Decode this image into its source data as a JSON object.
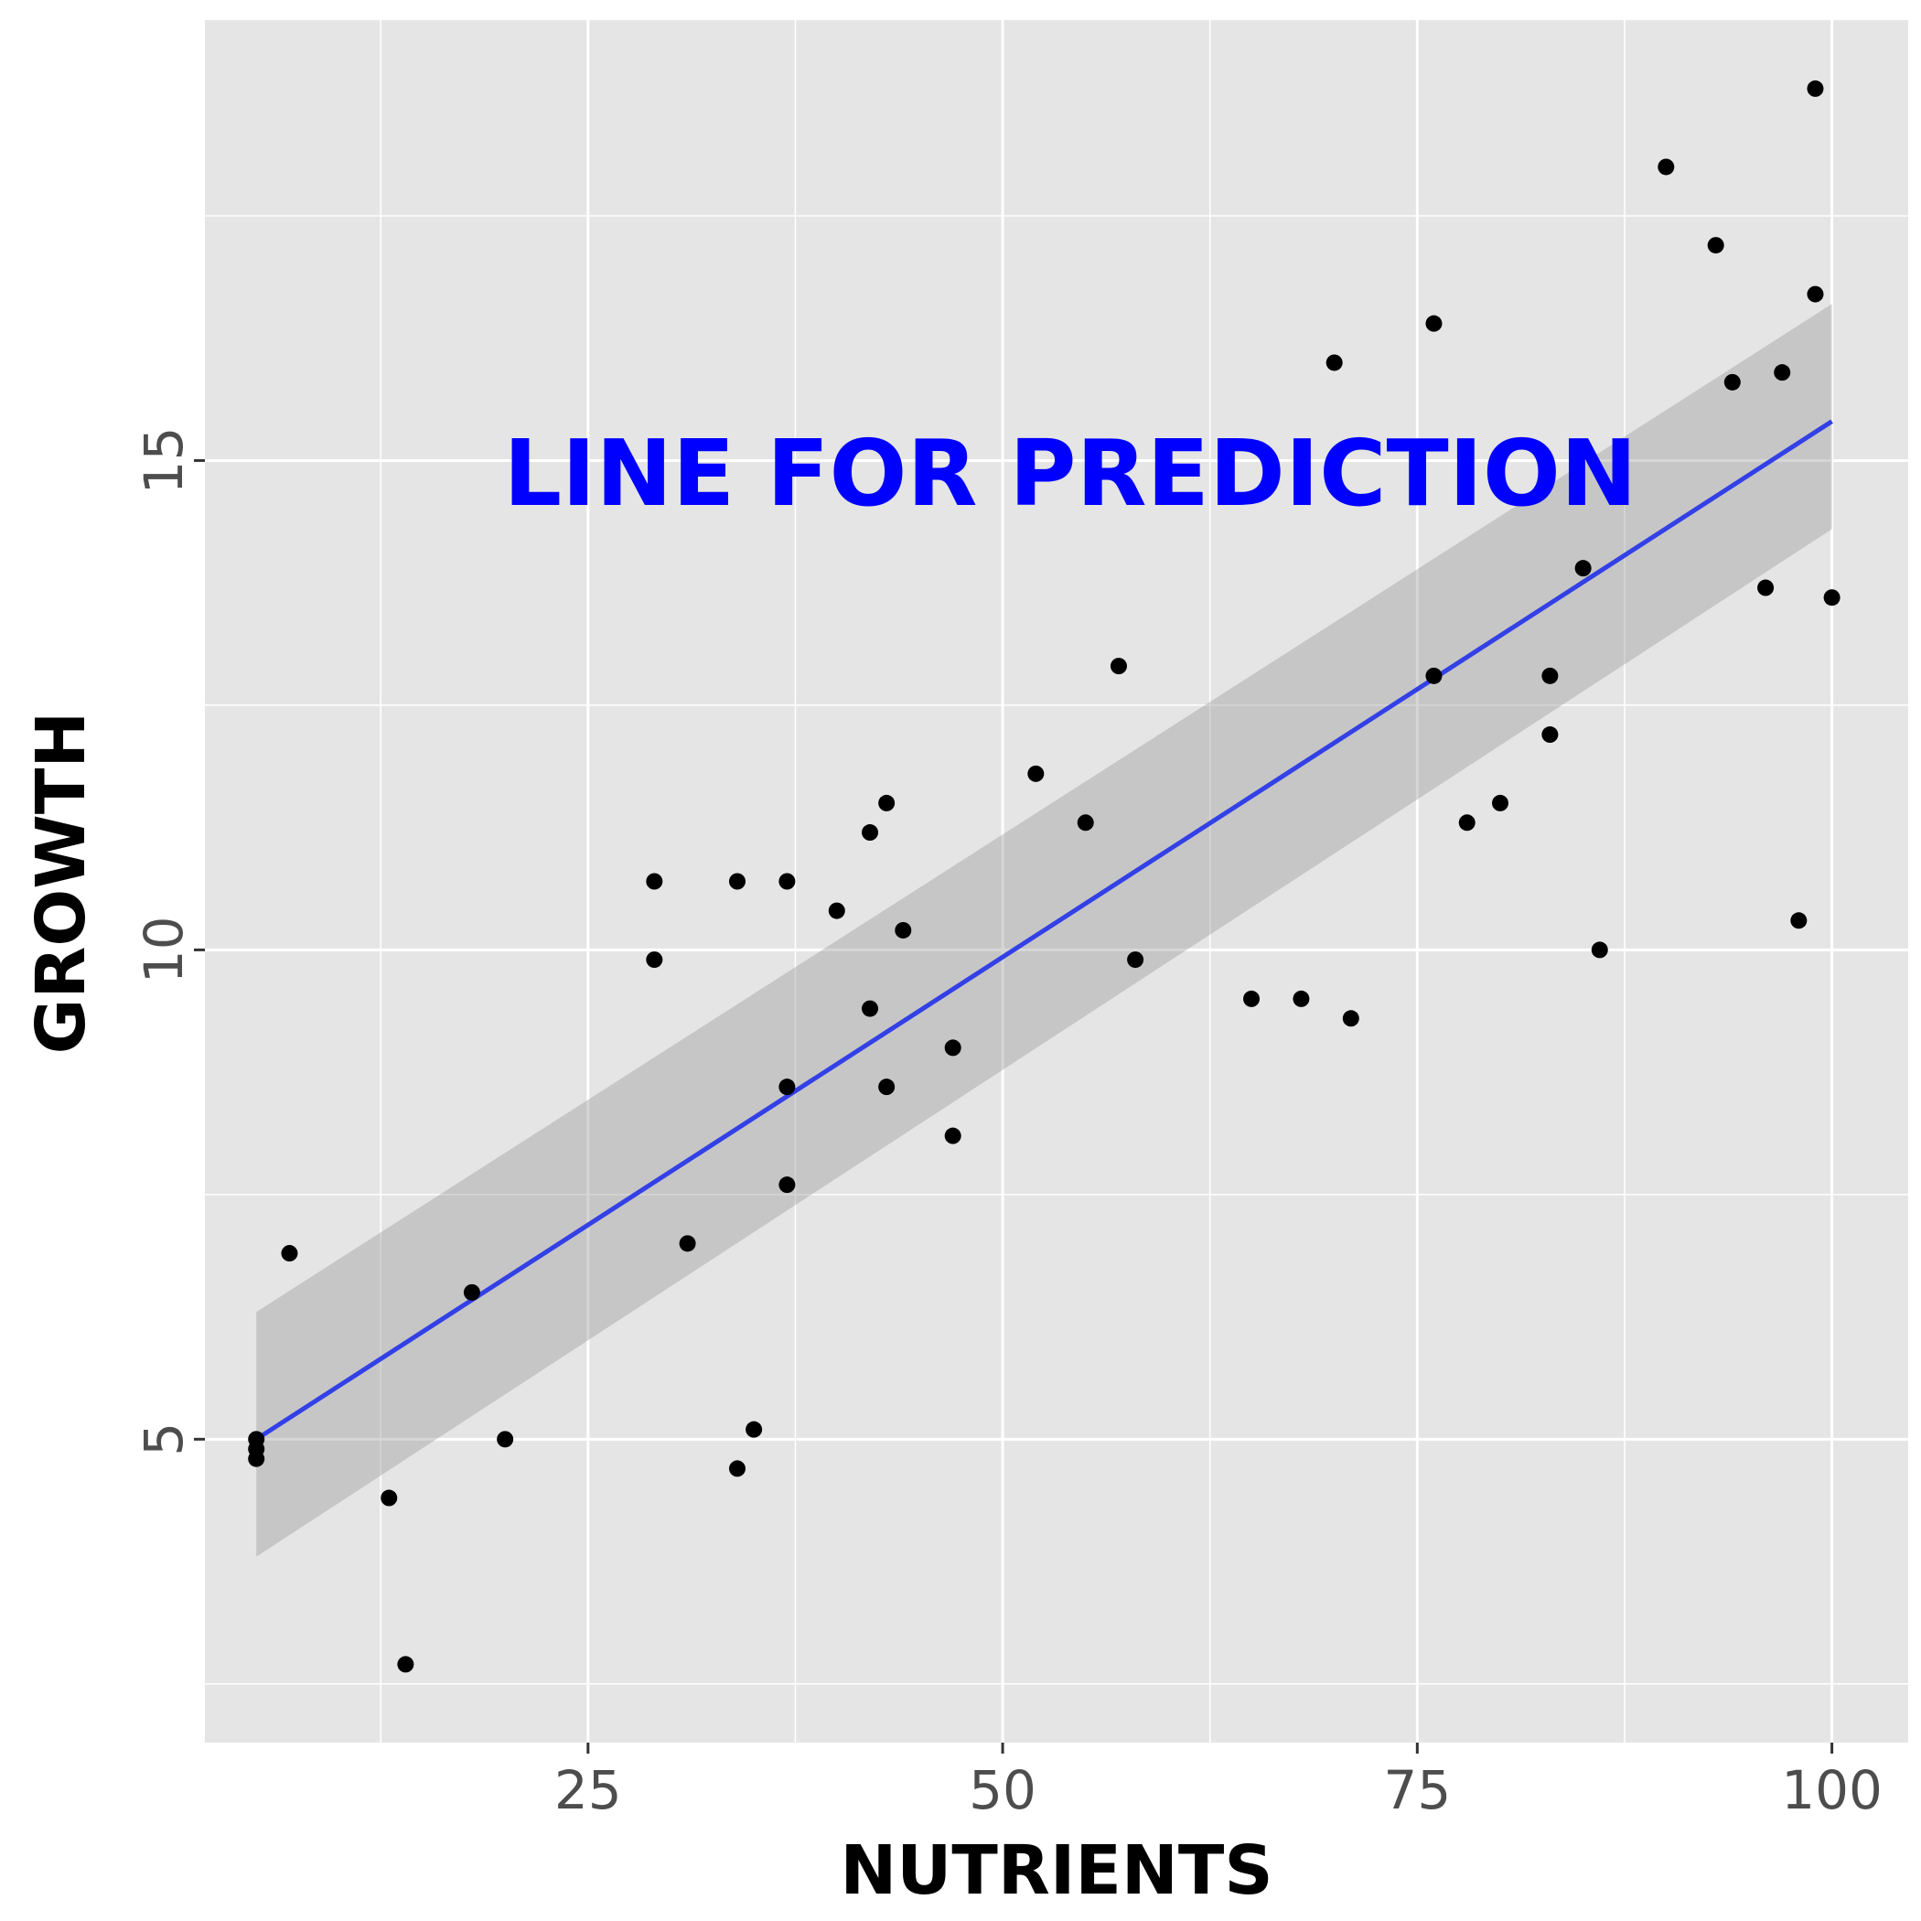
{
  "chart_data": {
    "type": "scatter",
    "xlabel": "NUTRIENTS",
    "ylabel": "GROWTH",
    "annotation": "LINE FOR PREDICTION",
    "xlim": [
      1.9,
      104.6
    ],
    "ylim": [
      1.9,
      19.5
    ],
    "x_major_ticks": [
      25,
      50,
      75,
      100
    ],
    "x_tick_labels": [
      "25",
      "50",
      "75",
      "100"
    ],
    "x_minor_ticks": [
      12.5,
      37.5,
      62.5,
      87.5
    ],
    "y_major_ticks": [
      5,
      10,
      15
    ],
    "y_tick_labels": [
      "5",
      "10",
      "15"
    ],
    "y_minor_ticks": [
      2.5,
      7.5,
      12.5,
      17.5
    ],
    "grid": true,
    "colors": {
      "panel_background": "#e5e5e5",
      "grid": "#ffffff",
      "points": "#000000",
      "regression_line": "#3340e6",
      "confidence_band": "#999999",
      "annotation": "#0000ff"
    },
    "points": [
      {
        "x": 5,
        "y": 5.0
      },
      {
        "x": 5,
        "y": 4.9
      },
      {
        "x": 5,
        "y": 4.8
      },
      {
        "x": 7,
        "y": 6.9
      },
      {
        "x": 13,
        "y": 4.4
      },
      {
        "x": 14,
        "y": 2.7
      },
      {
        "x": 18,
        "y": 6.5
      },
      {
        "x": 20,
        "y": 5.0
      },
      {
        "x": 29,
        "y": 10.7
      },
      {
        "x": 29,
        "y": 9.9
      },
      {
        "x": 31,
        "y": 7.0
      },
      {
        "x": 34,
        "y": 10.7
      },
      {
        "x": 34,
        "y": 4.7
      },
      {
        "x": 35,
        "y": 5.1
      },
      {
        "x": 37,
        "y": 10.7
      },
      {
        "x": 37,
        "y": 8.6
      },
      {
        "x": 37,
        "y": 7.6
      },
      {
        "x": 40,
        "y": 10.4
      },
      {
        "x": 42,
        "y": 11.2
      },
      {
        "x": 42,
        "y": 9.4
      },
      {
        "x": 43,
        "y": 11.5
      },
      {
        "x": 43,
        "y": 8.6
      },
      {
        "x": 44,
        "y": 10.2
      },
      {
        "x": 47,
        "y": 9.0
      },
      {
        "x": 47,
        "y": 8.1
      },
      {
        "x": 52,
        "y": 11.8
      },
      {
        "x": 55,
        "y": 11.3
      },
      {
        "x": 57,
        "y": 12.9
      },
      {
        "x": 58,
        "y": 9.9
      },
      {
        "x": 65,
        "y": 9.5
      },
      {
        "x": 68,
        "y": 9.5
      },
      {
        "x": 70,
        "y": 16.0
      },
      {
        "x": 71,
        "y": 9.3
      },
      {
        "x": 76,
        "y": 16.4
      },
      {
        "x": 76,
        "y": 12.8
      },
      {
        "x": 78,
        "y": 11.3
      },
      {
        "x": 80,
        "y": 11.5
      },
      {
        "x": 83,
        "y": 12.8
      },
      {
        "x": 83,
        "y": 12.2
      },
      {
        "x": 85,
        "y": 13.9
      },
      {
        "x": 86,
        "y": 10.0
      },
      {
        "x": 90,
        "y": 18.0
      },
      {
        "x": 93,
        "y": 17.2
      },
      {
        "x": 94,
        "y": 15.8
      },
      {
        "x": 96,
        "y": 13.7
      },
      {
        "x": 97,
        "y": 15.9
      },
      {
        "x": 98,
        "y": 10.3
      },
      {
        "x": 99,
        "y": 18.8
      },
      {
        "x": 99,
        "y": 16.7
      },
      {
        "x": 100,
        "y": 13.6
      }
    ],
    "regression_line": {
      "x": [
        5,
        100
      ],
      "y": [
        5.0,
        15.4
      ]
    },
    "confidence_band": {
      "x": [
        5,
        100
      ],
      "lower": [
        3.8,
        14.3
      ],
      "upper": [
        6.3,
        16.6
      ]
    }
  }
}
